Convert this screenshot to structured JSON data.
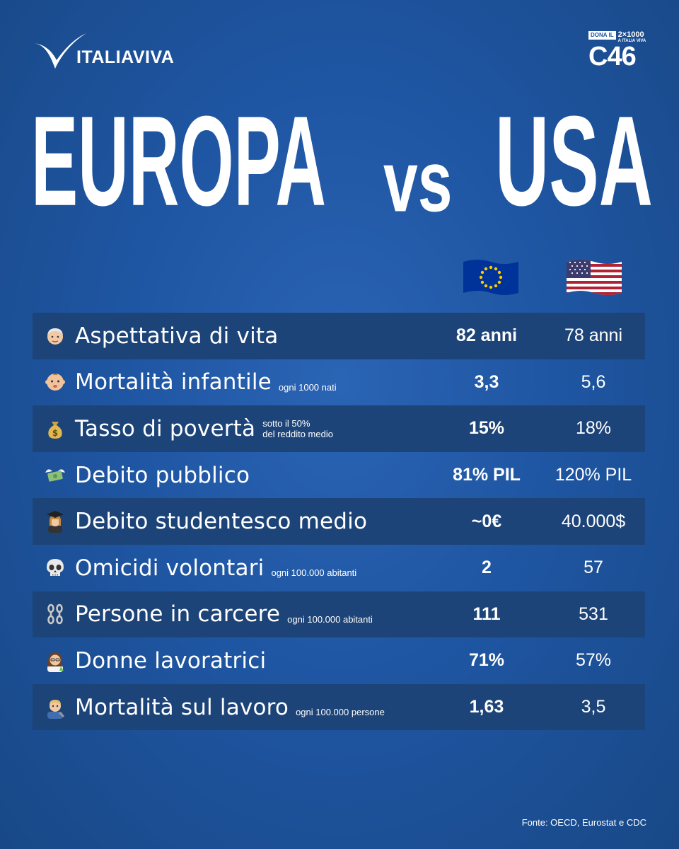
{
  "brand": {
    "name": "ITALIAVIVA"
  },
  "badge": {
    "dona": "DONA IL",
    "two_per_mille": "2×1000",
    "a_italia_viva": "A ITALIA VIVA",
    "code": "C46"
  },
  "headline": {
    "left": "EUROPA",
    "vs": "vs",
    "right": "USA"
  },
  "columns": {
    "eu_icon": "eu-flag",
    "us_icon": "us-flag"
  },
  "chart_data": {
    "type": "table",
    "title": "EUROPA vs USA",
    "columns": [
      "Europa",
      "USA"
    ],
    "rows": [
      {
        "emoji": "old-man-icon",
        "label": "Aspettativa di vita",
        "note": "",
        "eu": "82 anni",
        "us": "78 anni"
      },
      {
        "emoji": "baby-icon",
        "label": "Mortalità infantile",
        "note": "ogni 1000 nati",
        "eu": "3,3",
        "us": "5,6"
      },
      {
        "emoji": "money-bag-icon",
        "label": "Tasso di povertà",
        "note": "sotto il 50%",
        "note2": "del reddito medio",
        "eu": "15%",
        "us": "18%"
      },
      {
        "emoji": "money-with-wings-icon",
        "label": "Debito pubblico",
        "note": "",
        "eu": "81% PIL",
        "us": "120% PIL"
      },
      {
        "emoji": "student-icon",
        "label": "Debito studentesco medio",
        "note": "",
        "eu": "~0€",
        "us": "40.000$"
      },
      {
        "emoji": "skull-icon",
        "label": "Omicidi volontari",
        "note": "ogni 100.000 abitanti",
        "eu": "2",
        "us": "57"
      },
      {
        "emoji": "chains-icon",
        "label": "Persone in carcere",
        "note": "ogni 100.000 abitanti",
        "eu": "111",
        "us": "531"
      },
      {
        "emoji": "woman-scientist-icon",
        "label": "Donne lavoratrici",
        "note": "",
        "eu": "71%",
        "us": "57%"
      },
      {
        "emoji": "mechanic-icon",
        "label": "Mortalità sul lavoro",
        "note": "ogni 100.000 persone",
        "eu": "1,63",
        "us": "3,5"
      }
    ]
  },
  "source": "Fonte: OECD, Eurostat e CDC",
  "colors": {
    "background": "#1f56a3",
    "row_dark": "#1d4478",
    "text": "#ffffff",
    "eu_flag": "#003399",
    "eu_stars": "#ffcc00",
    "us_red": "#b22234",
    "us_blue": "#3c3b6e"
  }
}
